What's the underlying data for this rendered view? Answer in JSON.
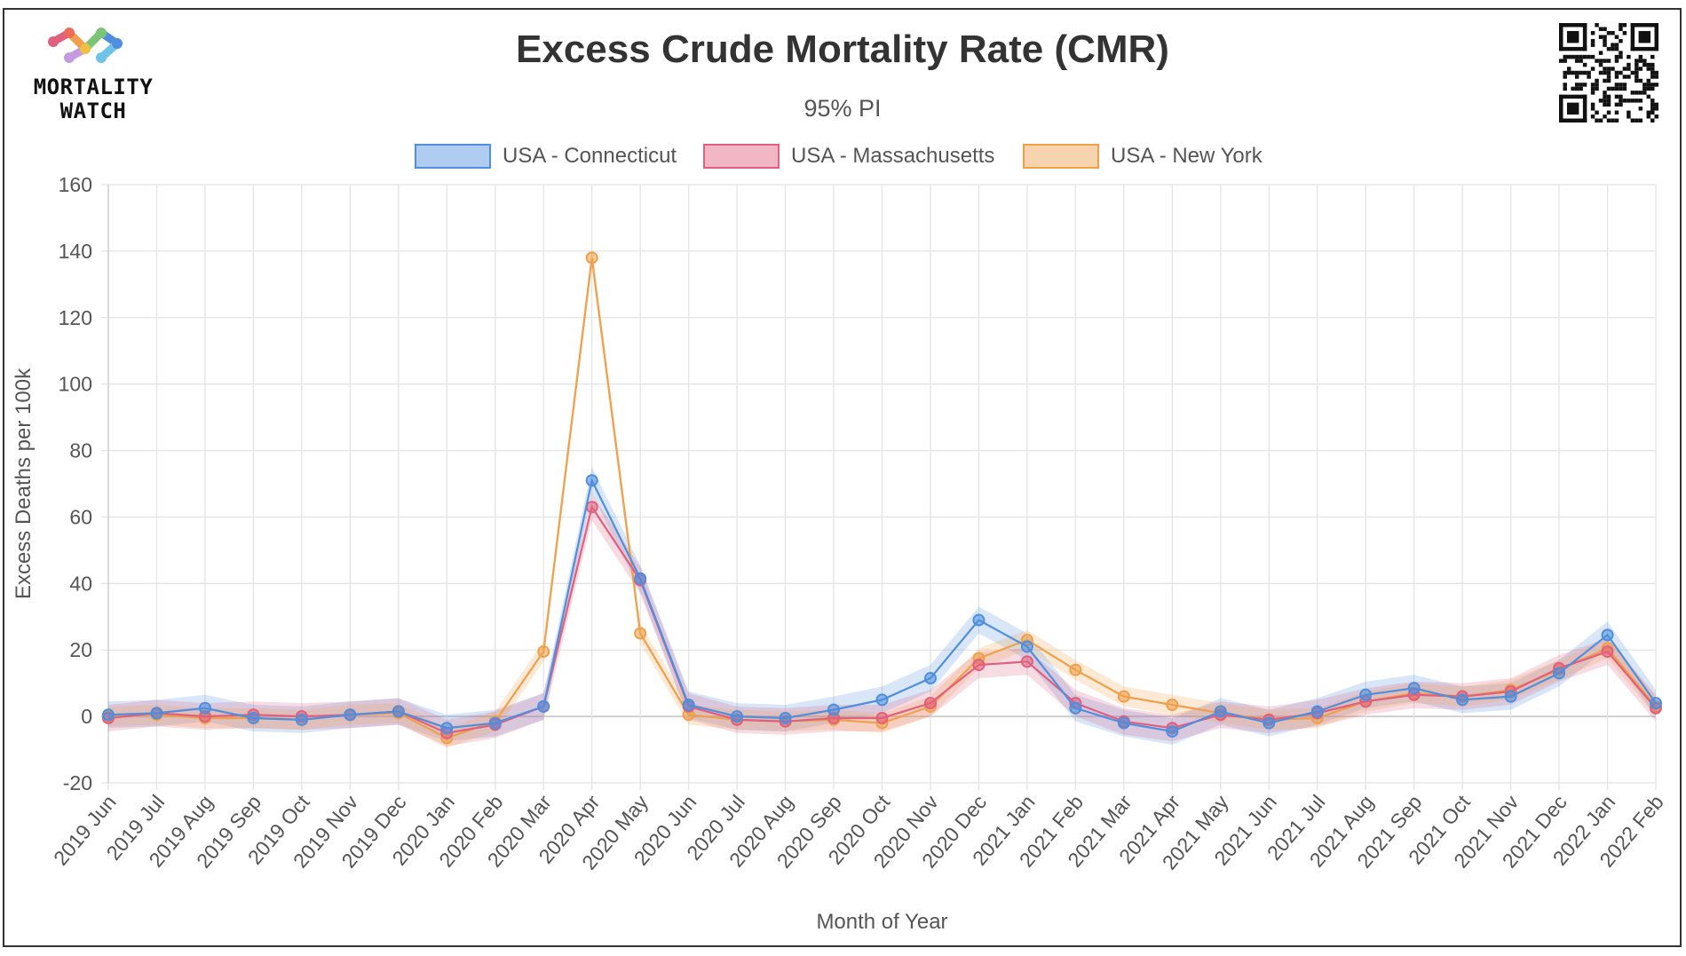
{
  "brand": {
    "line1": "MORTALITY",
    "line2": "WATCH"
  },
  "qr_icon": "qr-code-icon",
  "colors": {
    "connecticut": "#4f8fdd",
    "massachusetts": "#e0607e",
    "new_york": "#f0a04b",
    "grid": "#e4e4e4",
    "text": "#333333",
    "tick": "#555555"
  },
  "chart_data": {
    "type": "line",
    "title": "Excess Crude Mortality Rate (CMR)",
    "subtitle": "95% PI",
    "xlabel": "Month of Year",
    "ylabel": "Excess Deaths per 100k",
    "ylim": [
      -20,
      160
    ],
    "yticks": [
      -20,
      0,
      20,
      40,
      60,
      80,
      100,
      120,
      140,
      160
    ],
    "grid": true,
    "legend_position": "top-center",
    "categories": [
      "2019 Jun",
      "2019 Jul",
      "2019 Aug",
      "2019 Sep",
      "2019 Oct",
      "2019 Nov",
      "2019 Dec",
      "2020 Jan",
      "2020 Feb",
      "2020 Mar",
      "2020 Apr",
      "2020 May",
      "2020 Jun",
      "2020 Jul",
      "2020 Aug",
      "2020 Sep",
      "2020 Oct",
      "2020 Nov",
      "2020 Dec",
      "2021 Jan",
      "2021 Feb",
      "2021 Mar",
      "2021 Apr",
      "2021 May",
      "2021 Jun",
      "2021 Jul",
      "2021 Aug",
      "2021 Sep",
      "2021 Oct",
      "2021 Nov",
      "2021 Dec",
      "2022 Jan",
      "2022 Feb"
    ],
    "series": [
      {
        "name": "USA - Connecticut",
        "color_key": "connecticut",
        "values": [
          0.5,
          1,
          2.5,
          -0.5,
          -1,
          0.5,
          1.5,
          -3.5,
          -2,
          3,
          71,
          41.5,
          3.5,
          0,
          -0.5,
          2,
          5,
          11.5,
          29,
          21,
          2.5,
          -2,
          -4.5,
          1.5,
          -2,
          1.5,
          6.5,
          8.5,
          5,
          6,
          13,
          24.5,
          4
        ],
        "band": 4
      },
      {
        "name": "USA - Massachusetts",
        "color_key": "massachusetts",
        "values": [
          -0.5,
          1,
          0,
          0.5,
          0,
          0.5,
          1.5,
          -5,
          -2.5,
          3,
          63,
          41,
          3,
          -1,
          -1.5,
          -0.5,
          -0.5,
          4,
          15.5,
          16.5,
          4,
          -1.5,
          -3.5,
          0.5,
          -1,
          1,
          4.5,
          6.5,
          6,
          7.5,
          14.5,
          19.5,
          2.5
        ],
        "band": 4
      },
      {
        "name": "USA - New York",
        "color_key": "new_york",
        "values": [
          0,
          0.5,
          -0.5,
          -0.5,
          -1,
          0.5,
          1,
          -6.5,
          -1.5,
          19.5,
          138,
          25,
          0.5,
          -1,
          -1.5,
          -1,
          -2,
          3,
          17.5,
          23,
          14,
          6,
          3.5,
          1,
          -1,
          -0.5,
          4.5,
          7,
          6,
          8,
          14,
          20.5,
          3
        ],
        "band": 3
      }
    ]
  }
}
